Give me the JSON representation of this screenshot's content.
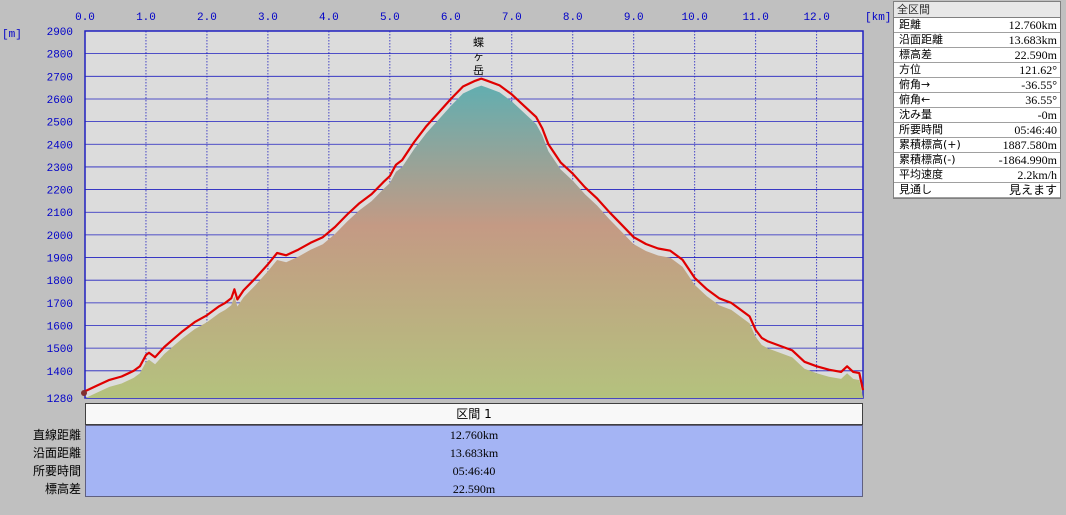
{
  "chart_data": {
    "type": "area",
    "x_unit": "[km]",
    "y_unit": "[m]",
    "x_ticks": [
      "0.0",
      "1.0",
      "2.0",
      "3.0",
      "4.0",
      "5.0",
      "6.0",
      "7.0",
      "8.0",
      "9.0",
      "10.0",
      "11.0",
      "12.0"
    ],
    "y_ticks": [
      "2900",
      "2800",
      "2700",
      "2600",
      "2500",
      "2400",
      "2300",
      "2200",
      "2100",
      "2000",
      "1900",
      "1800",
      "1700",
      "1600",
      "1500",
      "1400",
      "1280"
    ],
    "xlim": [
      0,
      12.76
    ],
    "ylim": [
      1280,
      2900
    ],
    "peak_label": "蝶ヶ岳",
    "series": [
      {
        "x": [
          0.0,
          0.2,
          0.4,
          0.6,
          0.8,
          0.9,
          1.0,
          1.05,
          1.15,
          1.3,
          1.45,
          1.6,
          1.8,
          2.0,
          2.2,
          2.3,
          2.4,
          2.45,
          2.5,
          2.6,
          2.8,
          3.0,
          3.15,
          3.3,
          3.5,
          3.7,
          3.9,
          4.1,
          4.3,
          4.5,
          4.7,
          4.9,
          5.0,
          5.1,
          5.2,
          5.4,
          5.6,
          5.8,
          6.0,
          6.2,
          6.4,
          6.5,
          6.6,
          6.8,
          7.0,
          7.2,
          7.4,
          7.5,
          7.6,
          7.8,
          8.0,
          8.2,
          8.4,
          8.6,
          8.8,
          9.0,
          9.2,
          9.4,
          9.6,
          9.8,
          10.0,
          10.2,
          10.4,
          10.6,
          10.8,
          10.9,
          11.0,
          11.1,
          11.2,
          11.4,
          11.6,
          11.8,
          12.0,
          12.2,
          12.4,
          12.5,
          12.6,
          12.7,
          12.76
        ],
        "y": [
          1310,
          1335,
          1360,
          1375,
          1400,
          1420,
          1470,
          1480,
          1460,
          1505,
          1540,
          1575,
          1615,
          1645,
          1685,
          1700,
          1720,
          1760,
          1715,
          1755,
          1810,
          1870,
          1920,
          1910,
          1935,
          1965,
          1990,
          2035,
          2090,
          2140,
          2180,
          2235,
          2260,
          2310,
          2330,
          2410,
          2480,
          2540,
          2600,
          2655,
          2680,
          2690,
          2680,
          2660,
          2620,
          2570,
          2520,
          2470,
          2400,
          2320,
          2270,
          2210,
          2160,
          2100,
          2045,
          1990,
          1960,
          1940,
          1930,
          1890,
          1810,
          1760,
          1720,
          1700,
          1660,
          1640,
          1580,
          1545,
          1530,
          1510,
          1490,
          1440,
          1420,
          1405,
          1395,
          1420,
          1395,
          1390,
          1315
        ]
      }
    ]
  },
  "stats_panel": {
    "title": "全区間",
    "rows": [
      {
        "label": "距離",
        "value": "12.760km"
      },
      {
        "label": "沿面距離",
        "value": "13.683km"
      },
      {
        "label": "標高差",
        "value": "22.590m"
      },
      {
        "label": "方位",
        "value": "121.62°"
      },
      {
        "label": "俯角→",
        "value": "-36.55°"
      },
      {
        "label": "俯角←",
        "value": "36.55°"
      },
      {
        "label": "沈み量",
        "value": "-0m"
      },
      {
        "label": "所要時間",
        "value": "05:46:40"
      },
      {
        "label": "累積標高(+)",
        "value": "1887.580m"
      },
      {
        "label": "累積標高(-)",
        "value": "-1864.990m"
      },
      {
        "label": "平均速度",
        "value": "2.2km/h"
      },
      {
        "label": "見通し",
        "value": "見えます"
      }
    ]
  },
  "section_table": {
    "header": "区間 1",
    "rows": [
      {
        "label": "直線距離",
        "value": "12.760km"
      },
      {
        "label": "沿面距離",
        "value": "13.683km"
      },
      {
        "label": "所要時間",
        "value": "05:46:40"
      },
      {
        "label": "標高差",
        "value": "22.590m"
      }
    ]
  },
  "colors": {
    "plot_bg": "#dcdcdc",
    "grid": "#2020c0",
    "profile_line": "#e00000",
    "terrain_top": "#6aa8a4",
    "terrain_mid": "#c09880",
    "terrain_bottom": "#b0c080",
    "table_bg": "#a4b4f4"
  }
}
